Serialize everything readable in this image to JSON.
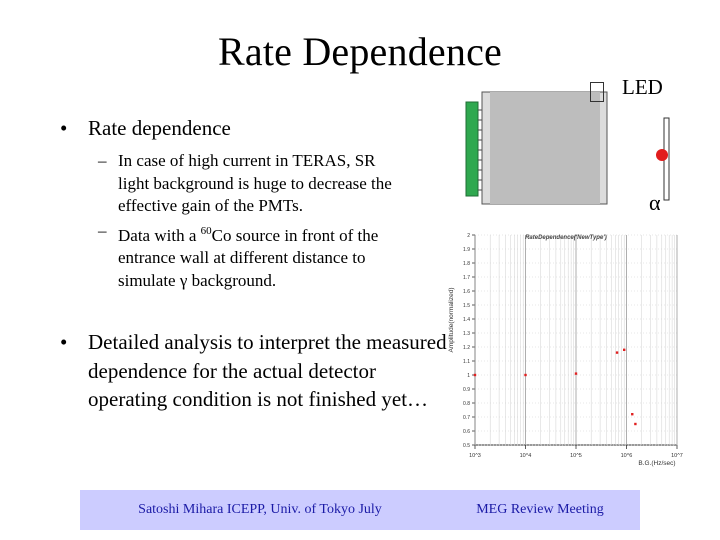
{
  "slide": {
    "title": "Rate Dependence",
    "bullets": [
      {
        "text": "Rate dependence",
        "sub": [
          "In case of high current in TERAS, SR light background is huge to decrease the effective gain of the PMTs.",
          {
            "pre": "Data with a ",
            "sup": "60",
            "post": "Co source in front of the entrance wall at different distance to simulate γ background."
          }
        ]
      },
      {
        "text": "Detailed analysis to interpret the measured dependence for the actual detector operating condition is not finished yet…"
      }
    ],
    "led_label": "LED",
    "alpha_label": "α",
    "bullet_glyph": "•",
    "dash_glyph": "–",
    "footer": {
      "left": "Satoshi Mihara ICEPP, Univ. of Tokyo July",
      "right": "MEG Review Meeting"
    }
  },
  "colors": {
    "led_red": "#e11d1d",
    "pmt_green": "#2fa84f",
    "footer_bg": "#ccccff",
    "footer_text": "#1a1aa6",
    "point_red": "#e02020"
  },
  "chart_data": {
    "type": "scatter",
    "title": "RateDependence('NewType')",
    "xlabel": "B.G.(Hz/sec)",
    "ylabel": "Amplitude(normalized)",
    "x_scale": "log",
    "x_ticks": [
      "10^3",
      "10^4",
      "10^5",
      "10^6",
      "10^7"
    ],
    "xlim": [
      1000,
      10000000
    ],
    "ylim": [
      0.5,
      2
    ],
    "y_ticks": [
      "0.5",
      "0.6",
      "0.7",
      "0.8",
      "0.9",
      "1",
      "1.1",
      "1.2",
      "1.3",
      "1.4",
      "1.5",
      "1.6",
      "1.7",
      "1.8",
      "1.9",
      "2"
    ],
    "grid": true,
    "points": [
      {
        "x": 1000,
        "y": 1.0
      },
      {
        "x": 10000,
        "y": 1.0
      },
      {
        "x": 100000,
        "y": 1.01
      },
      {
        "x": 650000,
        "y": 1.16
      },
      {
        "x": 900000,
        "y": 1.18
      },
      {
        "x": 1300000,
        "y": 0.72
      },
      {
        "x": 1500000,
        "y": 0.65
      }
    ]
  }
}
